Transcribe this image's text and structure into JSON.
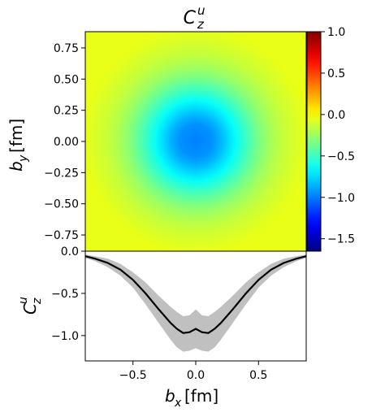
{
  "chart_data": [
    {
      "type": "heatmap",
      "title": "C_z^u",
      "title_main": "C",
      "title_sub": "z",
      "title_sup": "u",
      "xlabel": "",
      "ylabel": "b_y [fm]",
      "ylabel_main": "b",
      "ylabel_sub": "y",
      "ylabel_unit": "[fm]",
      "xlim": [
        -0.88,
        0.88
      ],
      "ylim": [
        -0.88,
        0.88
      ],
      "ytick_values": [
        0.75,
        0.5,
        0.25,
        0.0,
        -0.25,
        -0.5,
        -0.75
      ],
      "ytick_labels": [
        "0.75",
        "0.50",
        "0.25",
        "0.00",
        "−0.25",
        "−0.50",
        "−0.75"
      ],
      "colormap": "jet",
      "colorbar": {
        "range": [
          -1.65,
          1.0
        ],
        "tick_values": [
          1.0,
          0.5,
          0.0,
          -0.5,
          -1.0,
          -1.5
        ],
        "tick_labels": [
          "1.0",
          "0.5",
          "0.0",
          "−0.5",
          "−1.0",
          "−1.5"
        ]
      },
      "field": {
        "center": [
          0.0,
          0.0
        ],
        "min_value": -0.97,
        "background_value": -0.05
      }
    },
    {
      "type": "line",
      "title": "",
      "xlabel": "b_x [fm]",
      "xlabel_main": "b",
      "xlabel_sub": "x",
      "xlabel_unit": "[fm]",
      "ylabel": "C_z^u",
      "ylabel_main": "C",
      "ylabel_sub": "z",
      "ylabel_sup": "u",
      "xlim": [
        -0.88,
        0.88
      ],
      "ylim": [
        -1.3,
        0.0
      ],
      "xtick_values": [
        -0.5,
        0.0,
        0.5
      ],
      "xtick_labels": [
        "−0.5",
        "0.0",
        "0.5"
      ],
      "ytick_values": [
        0.0,
        -0.5,
        -1.0
      ],
      "ytick_labels": [
        "0.0",
        "−0.5",
        "−1.0"
      ],
      "series": [
        {
          "line_color": "#000000",
          "band_color": "#c0c0c0",
          "x": [
            -0.88,
            -0.8,
            -0.7,
            -0.6,
            -0.5,
            -0.4,
            -0.3,
            -0.2,
            -0.15,
            -0.1,
            -0.05,
            0.0,
            0.05,
            0.1,
            0.15,
            0.2,
            0.3,
            0.4,
            0.5,
            0.6,
            0.7,
            0.8,
            0.88
          ],
          "y": [
            -0.06,
            -0.09,
            -0.14,
            -0.22,
            -0.34,
            -0.5,
            -0.68,
            -0.85,
            -0.92,
            -0.97,
            -0.96,
            -0.92,
            -0.96,
            -0.97,
            -0.92,
            -0.85,
            -0.68,
            -0.5,
            -0.34,
            -0.22,
            -0.14,
            -0.09,
            -0.06
          ],
          "y_lower": [
            -0.08,
            -0.12,
            -0.19,
            -0.29,
            -0.43,
            -0.63,
            -0.84,
            -1.05,
            -1.14,
            -1.19,
            -1.18,
            -1.15,
            -1.18,
            -1.19,
            -1.14,
            -1.05,
            -0.84,
            -0.63,
            -0.43,
            -0.29,
            -0.19,
            -0.12,
            -0.08
          ],
          "y_upper": [
            -0.04,
            -0.06,
            -0.09,
            -0.15,
            -0.25,
            -0.37,
            -0.52,
            -0.66,
            -0.72,
            -0.77,
            -0.76,
            -0.69,
            -0.76,
            -0.77,
            -0.72,
            -0.66,
            -0.52,
            -0.37,
            -0.25,
            -0.15,
            -0.09,
            -0.06,
            -0.04
          ]
        }
      ]
    }
  ]
}
